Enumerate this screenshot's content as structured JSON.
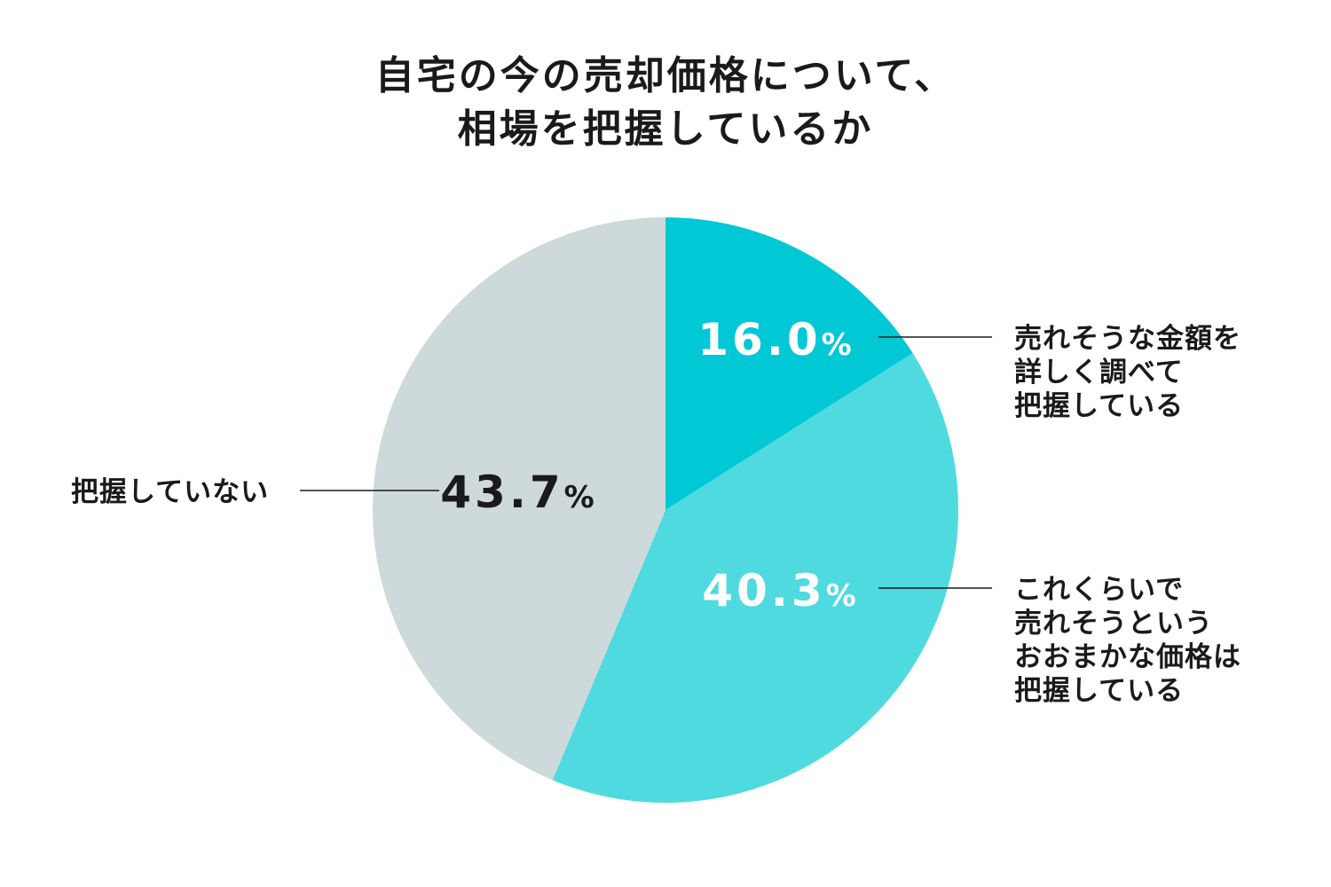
{
  "chart_data": {
    "type": "pie",
    "title_lines": [
      "自宅の今の売却価格について、",
      "相場を把握しているか"
    ],
    "slices": [
      {
        "label_lines": [
          "売れそうな金額を",
          "詳しく調べて",
          "把握している"
        ],
        "value": 16.0,
        "value_text": "16.0",
        "unit": "%",
        "color": "#00c8d4",
        "value_text_color": "#ffffff"
      },
      {
        "label_lines": [
          "これくらいで",
          "売れそうという",
          "おおまかな価格は",
          "把握している"
        ],
        "value": 40.3,
        "value_text": "40.3",
        "unit": "%",
        "color": "#4fdae0",
        "value_text_color": "#ffffff"
      },
      {
        "label_lines": [
          "把握していない"
        ],
        "value": 43.7,
        "value_text": "43.7",
        "unit": "%",
        "color": "#cdd9da",
        "value_text_color": "#1a1a1a"
      }
    ],
    "start": "12 o'clock",
    "direction": "clockwise",
    "legend": "none"
  }
}
